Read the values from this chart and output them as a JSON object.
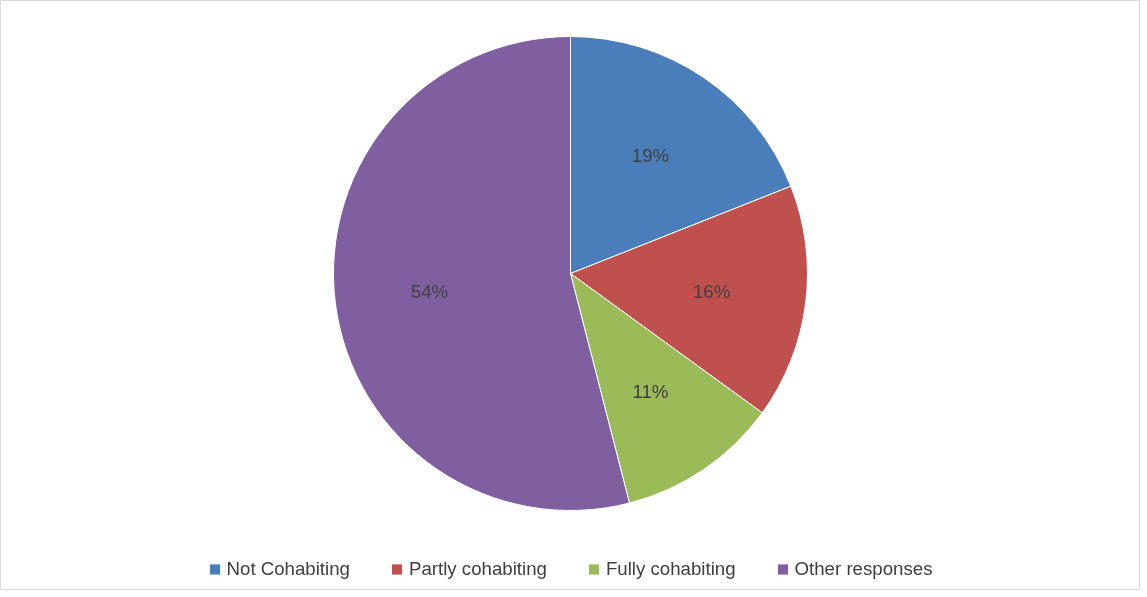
{
  "chart_data": {
    "type": "pie",
    "categories": [
      "Not Cohabiting",
      "Partly cohabiting",
      "Fully cohabiting",
      "Other responses"
    ],
    "values": [
      19,
      16,
      11,
      54
    ],
    "colors": [
      "#4a7ebb",
      "#c0504d",
      "#9bbb59",
      "#7f5f9f"
    ],
    "value_labels": [
      "19%",
      "16%",
      "11%",
      "54%"
    ],
    "legend": "bottom"
  }
}
